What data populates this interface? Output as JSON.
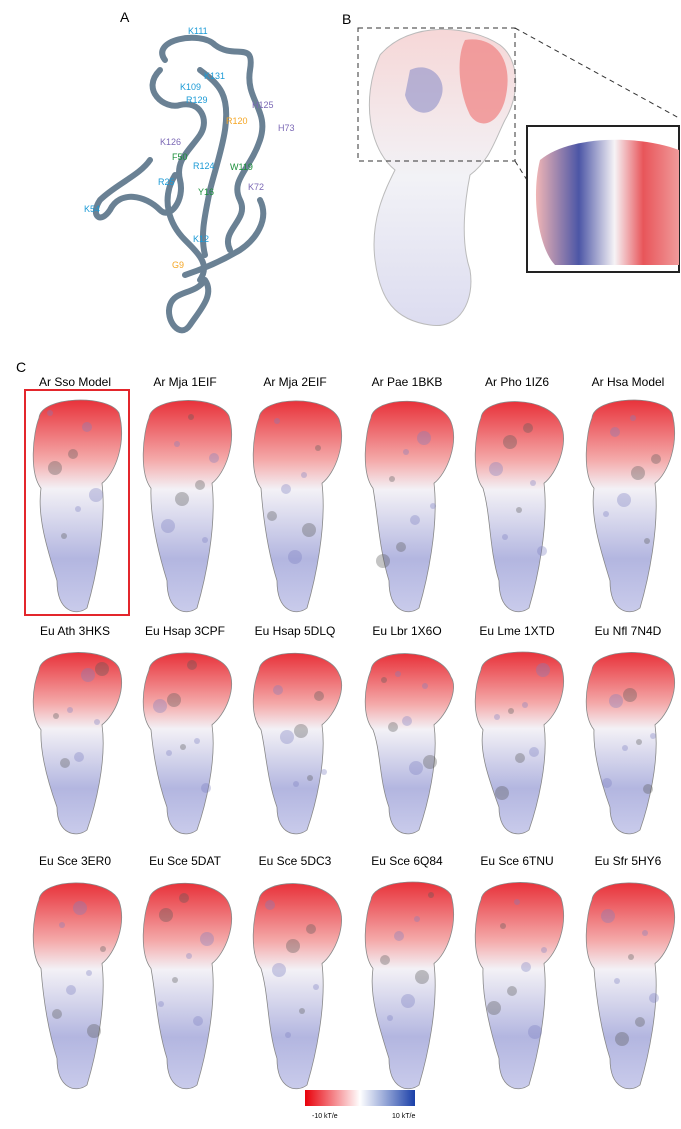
{
  "panels": {
    "a": {
      "label": "A",
      "residues": [
        "K111",
        "K109",
        "K131",
        "R129",
        "H125",
        "R120",
        "H73",
        "K126",
        "F50",
        "W119",
        "R124",
        "K72",
        "R25",
        "K54",
        "Y16",
        "K12",
        "G9"
      ]
    },
    "b": {
      "label": "B"
    },
    "c": {
      "label": "C",
      "models": [
        "Ar Sso Model",
        "Ar Mja 1EIF",
        "Ar Mja 2EIF",
        "Ar Pae 1BKB",
        "Ar Pho 1IZ6",
        "Ar Hsa Model",
        "Eu Ath 3HKS",
        "Eu Hsap 3CPF",
        "Eu Hsap 5DLQ",
        "Eu Lbr 1X6O",
        "Eu Lme 1XTD",
        "Eu Nfl 7N4D",
        "Eu Sce 3ER0",
        "Eu Sce 5DAT",
        "Eu Sce 5DC3",
        "Eu Sce 6Q84",
        "Eu Sce 6TNU",
        "Eu Sfr 5HY6"
      ],
      "colorbar": {
        "min_label": "-10 kT/e",
        "max_label": "10 kT/e"
      }
    }
  }
}
